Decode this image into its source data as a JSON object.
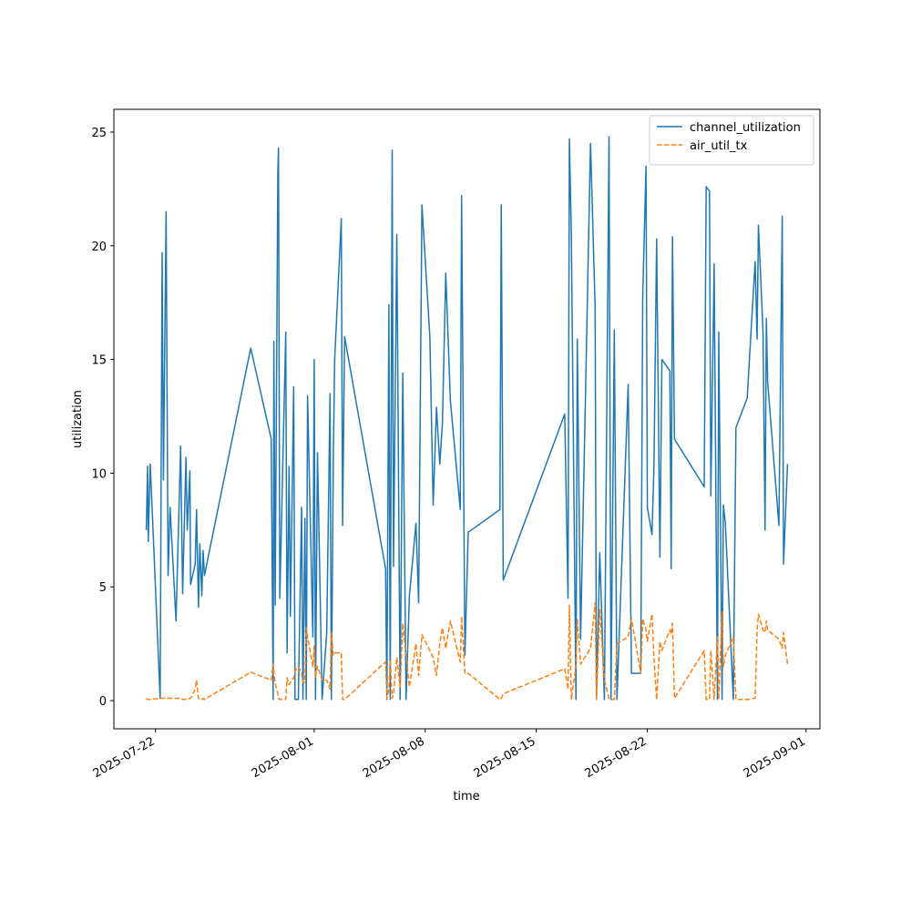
{
  "chart_data": {
    "type": "line",
    "xlabel": "time",
    "ylabel": "utilization",
    "x": [
      "2025-07-21T10:00",
      "2025-07-21T12:00",
      "2025-07-21T13:00",
      "2025-07-21T16:00",
      "2025-07-22T07:00",
      "2025-07-22T10:00",
      "2025-07-22T12:00",
      "2025-07-22T16:00",
      "2025-07-22T19:00",
      "2025-07-22T22:00",
      "2025-07-23T07:00",
      "2025-07-23T14:00",
      "2025-07-23T17:00",
      "2025-07-23T22:00",
      "2025-07-24T00:00",
      "2025-07-24T04:00",
      "2025-07-24T05:00",
      "2025-07-24T12:00",
      "2025-07-24T14:00",
      "2025-07-24T17:00",
      "2025-07-24T19:00",
      "2025-07-24T22:00",
      "2025-07-25T00:00",
      "2025-07-25T02:00",
      "2025-07-28T00:00",
      "2025-07-29T07:00",
      "2025-07-29T10:00",
      "2025-07-29T11:00",
      "2025-07-29T13:00",
      "2025-07-29T17:00",
      "2025-07-29T18:00",
      "2025-07-29T20:00",
      "2025-07-30T05:00",
      "2025-07-30T07:00",
      "2025-07-30T10:00",
      "2025-07-30T12:00",
      "2025-07-30T17:00",
      "2025-07-30T19:00",
      "2025-07-31T00:00",
      "2025-07-31T05:00",
      "2025-07-31T07:00",
      "2025-07-31T10:00",
      "2025-07-31T12:00",
      "2025-07-31T14:00",
      "2025-07-31T22:00",
      "2025-08-01T00:00",
      "2025-08-01T02:00",
      "2025-08-01T05:00",
      "2025-08-01T12:00",
      "2025-08-01T19:00",
      "2025-08-02T00:00",
      "2025-08-02T02:00",
      "2025-08-02T05:00",
      "2025-08-02T07:00",
      "2025-08-02T17:00",
      "2025-08-02T19:00",
      "2025-08-02T22:00",
      "2025-08-05T12:00",
      "2025-08-05T14:00",
      "2025-08-05T17:00",
      "2025-08-05T19:00",
      "2025-08-05T22:00",
      "2025-08-06T00:00",
      "2025-08-06T05:00",
      "2025-08-06T10:00",
      "2025-08-06T14:00",
      "2025-08-06T19:00",
      "2025-08-07T00:00",
      "2025-08-07T10:00",
      "2025-08-07T14:00",
      "2025-08-07T19:00",
      "2025-08-08T07:00",
      "2025-08-08T12:00",
      "2025-08-08T17:00",
      "2025-08-08T22:00",
      "2025-08-09T02:00",
      "2025-08-09T07:00",
      "2025-08-09T14:00",
      "2025-08-10T05:00",
      "2025-08-10T07:00",
      "2025-08-10T12:00",
      "2025-08-10T17:00",
      "2025-08-12T17:00",
      "2025-08-12T19:00",
      "2025-08-12T22:00",
      "2025-08-16T19:00",
      "2025-08-17T00:00",
      "2025-08-17T02:00",
      "2025-08-17T05:00",
      "2025-08-17T12:00",
      "2025-08-17T14:00",
      "2025-08-17T19:00",
      "2025-08-18T10:00",
      "2025-08-18T17:00",
      "2025-08-18T19:00",
      "2025-08-19T00:00",
      "2025-08-19T07:00",
      "2025-08-19T14:00",
      "2025-08-19T17:00",
      "2025-08-19T22:00",
      "2025-08-20T02:00",
      "2025-08-20T19:00",
      "2025-08-21T00:00",
      "2025-08-21T14:00",
      "2025-08-21T17:00",
      "2025-08-21T22:00",
      "2025-08-22T00:00",
      "2025-08-22T07:00",
      "2025-08-22T10:00",
      "2025-08-22T14:00",
      "2025-08-22T19:00",
      "2025-08-22T22:00",
      "2025-08-23T10:00",
      "2025-08-23T12:00",
      "2025-08-23T14:00",
      "2025-08-23T17:00",
      "2025-08-25T14:00",
      "2025-08-25T17:00",
      "2025-08-25T22:00",
      "2025-08-26T00:00",
      "2025-08-26T05:00",
      "2025-08-26T10:00",
      "2025-08-26T12:00",
      "2025-08-26T17:00",
      "2025-08-26T19:00",
      "2025-08-26T22:00",
      "2025-08-27T10:00",
      "2025-08-27T14:00",
      "2025-08-28T07:00",
      "2025-08-28T19:00",
      "2025-08-28T22:00",
      "2025-08-29T00:00",
      "2025-08-29T07:00",
      "2025-08-29T10:00",
      "2025-08-29T12:00",
      "2025-08-29T14:00",
      "2025-08-30T07:00",
      "2025-08-30T12:00",
      "2025-08-30T14:00",
      "2025-08-30T20:00"
    ],
    "series": [
      {
        "name": "channel_utilization",
        "color": "#1f77b4",
        "dash": false,
        "values": [
          7.5,
          10.3,
          7.0,
          10.4,
          0.1,
          19.7,
          9.7,
          21.5,
          5.5,
          8.5,
          3.5,
          11.2,
          4.7,
          10.7,
          7.5,
          10.1,
          5.1,
          6.0,
          8.4,
          4.1,
          6.9,
          4.6,
          6.6,
          5.5,
          15.5,
          11.5,
          0.05,
          15.8,
          4.2,
          23.2,
          24.3,
          4.5,
          16.2,
          2.1,
          10.3,
          3.7,
          13.8,
          0.05,
          0.05,
          8.5,
          0.05,
          8.0,
          0.05,
          13.4,
          2.8,
          15.0,
          0.05,
          10.9,
          0.05,
          3.0,
          13.5,
          0.05,
          10.8,
          15.0,
          21.2,
          7.7,
          16.0,
          5.8,
          0.05,
          17.4,
          0.05,
          24.2,
          5.9,
          20.5,
          0.05,
          14.4,
          0.05,
          4.6,
          7.8,
          4.3,
          21.8,
          16.0,
          8.6,
          12.9,
          10.4,
          12.2,
          18.8,
          13.2,
          8.4,
          22.2,
          2.0,
          7.4,
          8.4,
          21.8,
          5.3,
          12.6,
          4.5,
          24.7,
          20.5,
          0.05,
          15.9,
          2.7,
          24.5,
          17.3,
          0.05,
          6.5,
          0.05,
          24.8,
          0.05,
          16.3,
          0.05,
          13.9,
          1.2,
          1.2,
          17.8,
          23.5,
          8.5,
          7.3,
          10.3,
          20.3,
          6.3,
          15.0,
          14.5,
          5.8,
          20.4,
          11.5,
          9.4,
          22.6,
          22.4,
          9.0,
          19.2,
          0.05,
          16.2,
          0.05,
          8.6,
          7.8,
          0.05,
          12.0,
          13.3,
          19.3,
          15.9,
          20.9,
          16.2,
          7.5,
          16.8,
          14.0,
          7.7,
          21.3,
          6.0,
          10.4
        ]
      },
      {
        "name": "air_util_tx",
        "color": "#ff7f0e",
        "dash": true,
        "values": [
          0.1,
          0.05,
          0.05,
          0.05,
          0.1,
          0.1,
          0.1,
          0.1,
          0.1,
          0.1,
          0.1,
          0.1,
          0.05,
          0.05,
          0.05,
          0.1,
          0.1,
          0.5,
          0.9,
          0.1,
          0.05,
          0.05,
          0.1,
          0.05,
          1.25,
          0.9,
          1.6,
          1.2,
          0.8,
          0.3,
          0.1,
          0.05,
          0.05,
          1.0,
          0.7,
          0.8,
          1.0,
          1.3,
          1.5,
          1.2,
          0.8,
          0.8,
          3.2,
          2.8,
          1.5,
          2.4,
          1.0,
          1.5,
          0.9,
          0.9,
          0.5,
          3.0,
          2.0,
          2.1,
          2.1,
          0.05,
          0.05,
          1.7,
          0.1,
          0.5,
          1.8,
          0.1,
          0.3,
          1.9,
          0.6,
          3.4,
          2.0,
          0.6,
          2.5,
          1.1,
          2.9,
          2.2,
          1.9,
          1.1,
          2.5,
          3.2,
          2.3,
          3.5,
          1.7,
          3.7,
          1.2,
          1.2,
          0.05,
          0.1,
          0.3,
          1.4,
          0.5,
          4.2,
          0.05,
          1.5,
          3.6,
          1.6,
          2.3,
          4.3,
          0.05,
          4.0,
          0.9,
          0.1,
          0.05,
          0.05,
          2.5,
          2.8,
          3.6,
          1.2,
          3.6,
          3.1,
          2.6,
          3.8,
          1.9,
          0.05,
          2.6,
          2.2,
          3.1,
          2.9,
          3.4,
          0.1,
          2.2,
          0.05,
          0.05,
          2.2,
          0.05,
          2.8,
          0.05,
          3.9,
          1.5,
          2.0,
          2.8,
          0.05,
          0.05,
          0.1,
          3.1,
          3.8,
          3.1,
          3.0,
          3.5,
          3.1,
          2.7,
          2.3,
          3.0,
          1.6
        ]
      }
    ],
    "xlim": [
      "2025-07-19T09:00",
      "2025-09-01T21:00"
    ],
    "xticks": [
      "2025-07-22",
      "2025-08-01",
      "2025-08-08",
      "2025-08-15",
      "2025-08-22",
      "2025-09-01"
    ],
    "ylim": [
      -1.24,
      26.0
    ],
    "yticks": [
      0,
      5,
      10,
      15,
      20,
      25
    ],
    "legend": "upper right"
  }
}
